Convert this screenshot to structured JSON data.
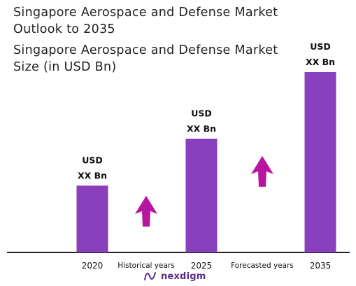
{
  "title": [
    "Singapore Aerospace and Defense Market",
    "Outlook to 2035"
  ],
  "subtitle": [
    "Singapore Aerospace and Defense Market",
    "Size (in USD Bn)"
  ],
  "logo": {
    "name": "nexdigm",
    "icon": "nexdigm-wave-icon"
  },
  "colors": {
    "bar": "#8a3fbd",
    "arrow": "#b5159f",
    "axis": "#222222"
  },
  "chart_data": {
    "type": "bar",
    "categories": [
      "2020",
      "2025",
      "2035"
    ],
    "values": [
      1,
      1.7,
      2.7
    ],
    "bar_labels": [
      {
        "line1": "USD",
        "line2": "XX Bn"
      },
      {
        "line1": "USD",
        "line2": "XX Bn"
      },
      {
        "line1": "USD",
        "line2": "XX Bn"
      }
    ],
    "period_labels": [
      "Historical years",
      "Forecasted years"
    ],
    "period_arrows": [
      "up-arrow-icon",
      "up-arrow-icon"
    ],
    "ylim": [
      0,
      2.7
    ],
    "grid": false,
    "legend": "none"
  }
}
